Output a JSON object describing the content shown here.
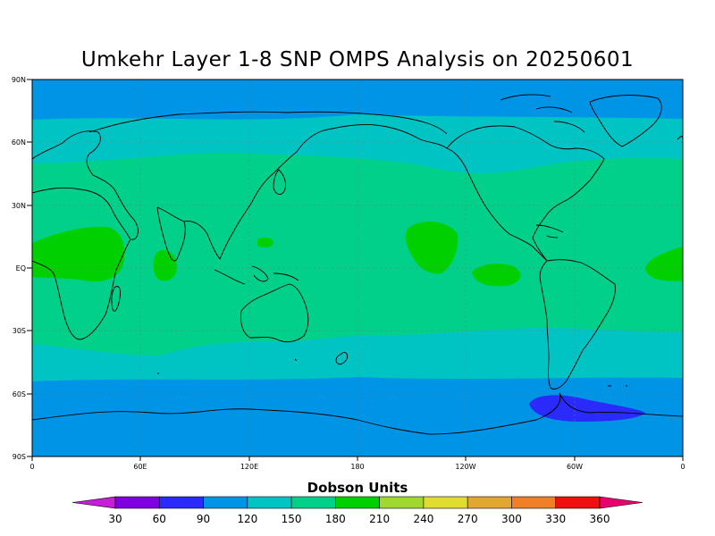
{
  "title": "Umkehr Layer 1-8 SNP OMPS Analysis on 20250601",
  "lat_labels": [
    "90N",
    "60N",
    "30N",
    "EQ",
    "30S",
    "60S",
    "90S"
  ],
  "lon_labels": [
    "0",
    "60E",
    "120E",
    "180",
    "120W",
    "60W",
    "0"
  ],
  "colorbar": {
    "title": "Dobson Units",
    "labels": [
      "30",
      "60",
      "90",
      "120",
      "150",
      "180",
      "210",
      "240",
      "270",
      "300",
      "330",
      "360"
    ],
    "colors": [
      "#c71ed7",
      "#7f00e0",
      "#2a2afa",
      "#0094e6",
      "#00c4c4",
      "#00d08a",
      "#00d000",
      "#a0d830",
      "#e0dc30",
      "#e0a830",
      "#f08028",
      "#f01010",
      "#e8006e"
    ]
  },
  "band_colors": {
    "c90": "#0094e6",
    "c120": "#00c4c4",
    "c150": "#00d08a",
    "c180": "#00d000",
    "c60": "#2a2afa",
    "coast": "#000000"
  }
}
